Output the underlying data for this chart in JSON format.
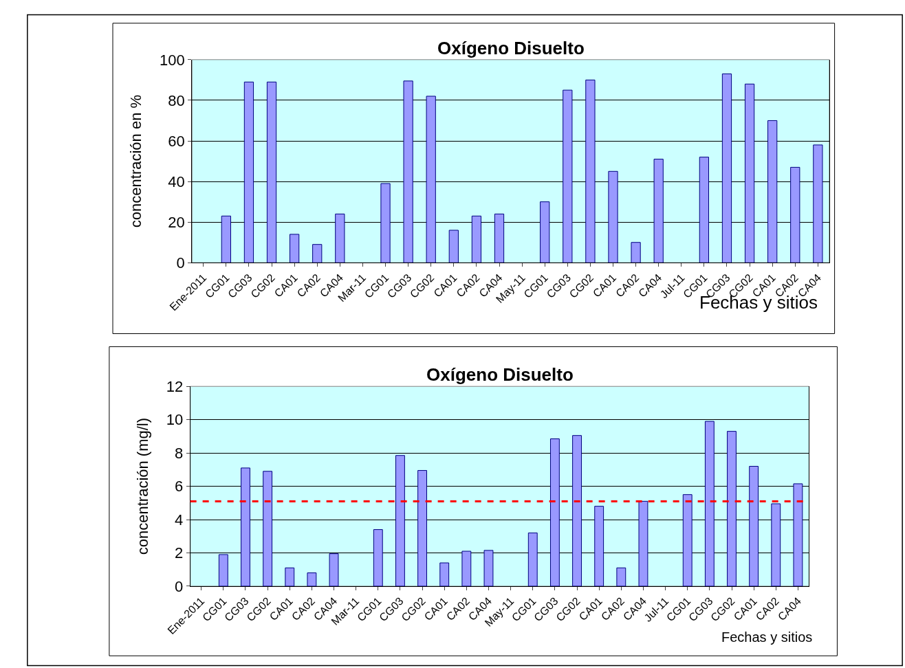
{
  "chart_data": [
    {
      "type": "bar",
      "title": "Oxígeno Disuelto",
      "xlabel": "Fechas y sitios",
      "ylabel": "concentración en %",
      "categories": [
        "Ene-2011",
        "CG01",
        "CG03",
        "CG02",
        "CA01",
        "CA02",
        "CA04",
        "Mar-11",
        "CG01",
        "CG03",
        "CG02",
        "CA01",
        "CA02",
        "CA04",
        "May-11",
        "CG01",
        "CG03",
        "CG02",
        "CA01",
        "CA02",
        "CA04",
        "Jul-11",
        "CG01",
        "CG03",
        "CG02",
        "CA01",
        "CA02",
        "CA04"
      ],
      "values": [
        null,
        23,
        89,
        89,
        14,
        9,
        24,
        null,
        39,
        89.5,
        82,
        16,
        23,
        24,
        null,
        30,
        85,
        90,
        45,
        10,
        51,
        null,
        52,
        93,
        88,
        70,
        47,
        58
      ],
      "color": "#9999ff",
      "ylim": [
        0,
        100
      ],
      "yticks": [
        0,
        20,
        40,
        60,
        80,
        100
      ],
      "grid": "y"
    },
    {
      "type": "bar",
      "title": "Oxígeno Disuelto",
      "xlabel": "Fechas y sitios",
      "ylabel": "concentración (mg/l)",
      "categories": [
        "Ene-2011",
        "CG01",
        "CG03",
        "CG02",
        "CA01",
        "CA02",
        "CA04",
        "Mar-11",
        "CG01",
        "CG03",
        "CG02",
        "CA01",
        "CA02",
        "CA04",
        "May-11",
        "CG01",
        "CG03",
        "CG02",
        "CA01",
        "CA02",
        "CA04",
        "Jul-11",
        "CG01",
        "CG03",
        "CG02",
        "CA01",
        "CA02",
        "CA04"
      ],
      "values": [
        null,
        1.9,
        7.1,
        6.9,
        1.1,
        0.8,
        1.95,
        null,
        3.4,
        7.85,
        6.95,
        1.4,
        2.1,
        2.15,
        null,
        3.2,
        8.85,
        9.05,
        4.8,
        1.1,
        5.1,
        null,
        5.5,
        9.9,
        9.3,
        7.2,
        4.95,
        6.15
      ],
      "color": "#9999ff",
      "ylim": [
        0,
        12
      ],
      "yticks": [
        0,
        2,
        4,
        6,
        8,
        10,
        12
      ],
      "grid": "y",
      "ref_lines": [
        {
          "axis": "y",
          "value": 5.1,
          "color": "#ff0000",
          "line_style": "dashed"
        }
      ]
    }
  ]
}
